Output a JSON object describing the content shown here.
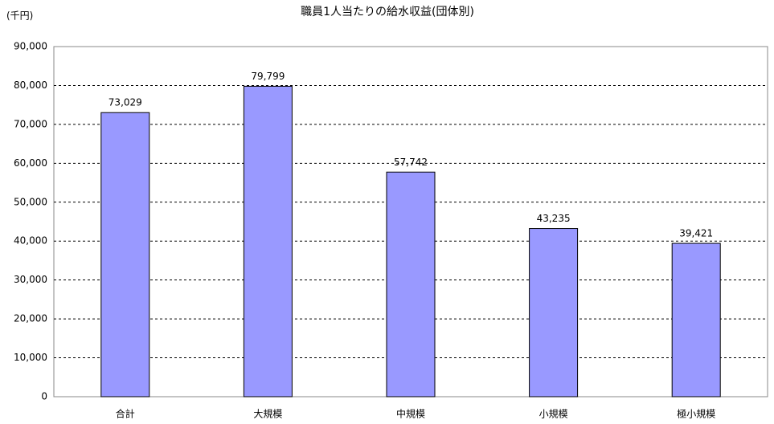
{
  "chart_data": {
    "type": "bar",
    "title": "職員1人当たりの給水収益(団体別)",
    "y_label": "(千円)",
    "categories": [
      "合計",
      "大規模",
      "中規模",
      "小規模",
      "極小規模"
    ],
    "values": [
      73029,
      79799,
      57742,
      43235,
      39421
    ],
    "value_labels": [
      "73,029",
      "79,799",
      "57,742",
      "43,235",
      "39,421"
    ],
    "color": "#9999ff",
    "ylim": [
      0,
      90000
    ],
    "yticks": [
      0,
      {
        "value": 10000,
        "label": "10,000"
      },
      {
        "value": 20000,
        "label": "20,000"
      },
      {
        "value": 30000,
        "label": "30,000"
      },
      {
        "value": 40000,
        "label": "40,000"
      },
      {
        "value": 50000,
        "label": "50,000"
      },
      {
        "value": 60000,
        "label": "60,000"
      },
      {
        "value": 70000,
        "label": "70,000"
      },
      {
        "value": 80000,
        "label": "80,000"
      },
      {
        "value": 90000,
        "label": "90,000"
      }
    ],
    "grid": true
  }
}
